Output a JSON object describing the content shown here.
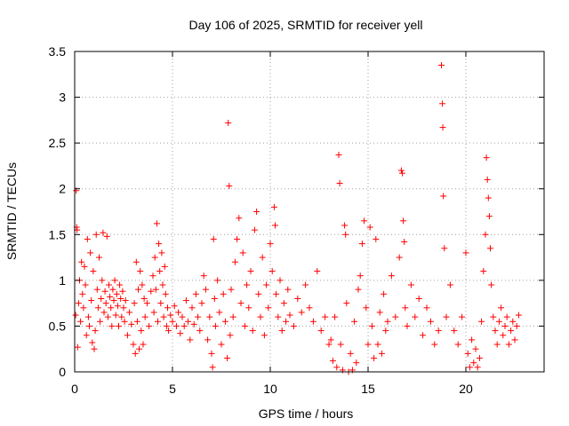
{
  "chart_data": {
    "type": "scatter",
    "title": "Day 106 of 2025, SRMTID for receiver yell",
    "xlabel": "GPS time / hours",
    "ylabel": "SRMTID / TECUs",
    "xlim": [
      0,
      24
    ],
    "ylim": [
      0,
      3.5
    ],
    "x_ticks": [
      0,
      5,
      10,
      15,
      20
    ],
    "x_tick_labels": [
      "0",
      "5",
      "10",
      "15",
      "20"
    ],
    "y_ticks": [
      0,
      0.5,
      1,
      1.5,
      2,
      2.5,
      3,
      3.5
    ],
    "y_tick_labels": [
      "0",
      "0.5",
      "1",
      "1.5",
      "2",
      "2.5",
      "3",
      "3.5"
    ],
    "grid": true,
    "marker": "plus",
    "color": "#ff0000",
    "series": [
      {
        "name": "SRMTID",
        "points": [
          [
            0.05,
            0.62
          ],
          [
            0.08,
            1.98
          ],
          [
            0.1,
            1.58
          ],
          [
            0.12,
            1.55
          ],
          [
            0.15,
            0.27
          ],
          [
            0.2,
            0.75
          ],
          [
            0.25,
            1.0
          ],
          [
            0.3,
            0.55
          ],
          [
            0.35,
            1.2
          ],
          [
            0.4,
            0.85
          ],
          [
            0.45,
            0.7
          ],
          [
            0.5,
            1.15
          ],
          [
            0.55,
            0.95
          ],
          [
            0.6,
            0.4
          ],
          [
            0.65,
            1.45
          ],
          [
            0.7,
            0.6
          ],
          [
            0.75,
            0.5
          ],
          [
            0.8,
            1.3
          ],
          [
            0.85,
            0.78
          ],
          [
            0.9,
            0.32
          ],
          [
            0.95,
            1.1
          ],
          [
            1.0,
            0.25
          ],
          [
            1.05,
            0.45
          ],
          [
            1.1,
            1.5
          ],
          [
            1.15,
            0.9
          ],
          [
            1.2,
            0.7
          ],
          [
            1.25,
            1.25
          ],
          [
            1.3,
            0.55
          ],
          [
            1.35,
            0.8
          ],
          [
            1.4,
            1.0
          ],
          [
            1.45,
            1.52
          ],
          [
            1.5,
            0.65
          ],
          [
            1.55,
            0.88
          ],
          [
            1.6,
            0.75
          ],
          [
            1.65,
            1.48
          ],
          [
            1.7,
            0.6
          ],
          [
            1.75,
            0.95
          ],
          [
            1.8,
            0.82
          ],
          [
            1.85,
            0.7
          ],
          [
            1.9,
            0.5
          ],
          [
            1.95,
            0.9
          ],
          [
            2.0,
            0.78
          ],
          [
            2.05,
            1.0
          ],
          [
            2.1,
            0.62
          ],
          [
            2.15,
            0.85
          ],
          [
            2.2,
            0.72
          ],
          [
            2.25,
            0.5
          ],
          [
            2.3,
            0.95
          ],
          [
            2.35,
            0.8
          ],
          [
            2.4,
            0.6
          ],
          [
            2.45,
            0.88
          ],
          [
            2.5,
            0.7
          ],
          [
            2.55,
            0.55
          ],
          [
            2.6,
            0.78
          ],
          [
            2.7,
            0.4
          ],
          [
            2.8,
            0.65
          ],
          [
            2.9,
            0.52
          ],
          [
            3.0,
            0.3
          ],
          [
            3.05,
            0.75
          ],
          [
            3.1,
            0.2
          ],
          [
            3.15,
            1.2
          ],
          [
            3.2,
            0.55
          ],
          [
            3.25,
            0.9
          ],
          [
            3.3,
            0.25
          ],
          [
            3.35,
            1.1
          ],
          [
            3.4,
            0.45
          ],
          [
            3.45,
            0.95
          ],
          [
            3.5,
            0.3
          ],
          [
            3.55,
            0.8
          ],
          [
            3.6,
            0.6
          ],
          [
            3.7,
            0.75
          ],
          [
            3.8,
            0.5
          ],
          [
            3.9,
            0.88
          ],
          [
            4.0,
            1.05
          ],
          [
            4.05,
            0.65
          ],
          [
            4.1,
            1.25
          ],
          [
            4.15,
            0.9
          ],
          [
            4.2,
            1.62
          ],
          [
            4.25,
            0.55
          ],
          [
            4.3,
            1.4
          ],
          [
            4.35,
            1.1
          ],
          [
            4.4,
            0.75
          ],
          [
            4.45,
            1.3
          ],
          [
            4.5,
            0.95
          ],
          [
            4.55,
            0.6
          ],
          [
            4.6,
            1.15
          ],
          [
            4.65,
            0.85
          ],
          [
            4.7,
            0.5
          ],
          [
            4.75,
            0.7
          ],
          [
            4.8,
            0.45
          ],
          [
            4.9,
            0.62
          ],
          [
            5.0,
            0.55
          ],
          [
            5.1,
            0.72
          ],
          [
            5.2,
            0.5
          ],
          [
            5.3,
            0.65
          ],
          [
            5.4,
            0.42
          ],
          [
            5.5,
            0.6
          ],
          [
            5.6,
            0.5
          ],
          [
            5.7,
            0.78
          ],
          [
            5.8,
            0.55
          ],
          [
            5.9,
            0.35
          ],
          [
            6.0,
            0.7
          ],
          [
            6.1,
            0.52
          ],
          [
            6.2,
            0.85
          ],
          [
            6.3,
            0.6
          ],
          [
            6.4,
            0.45
          ],
          [
            6.5,
            0.75
          ],
          [
            6.6,
            1.05
          ],
          [
            6.7,
            0.9
          ],
          [
            6.8,
            0.35
          ],
          [
            6.9,
            0.6
          ],
          [
            7.0,
            0.2
          ],
          [
            7.05,
            0.05
          ],
          [
            7.1,
            1.45
          ],
          [
            7.15,
            0.8
          ],
          [
            7.2,
            0.5
          ],
          [
            7.3,
            1.0
          ],
          [
            7.4,
            0.65
          ],
          [
            7.5,
            0.3
          ],
          [
            7.6,
            0.85
          ],
          [
            7.7,
            0.55
          ],
          [
            7.8,
            0.15
          ],
          [
            7.85,
            2.72
          ],
          [
            7.9,
            2.03
          ],
          [
            7.95,
            0.4
          ],
          [
            8.0,
            0.9
          ],
          [
            8.1,
            0.6
          ],
          [
            8.2,
            1.2
          ],
          [
            8.3,
            1.45
          ],
          [
            8.4,
            1.68
          ],
          [
            8.5,
            0.75
          ],
          [
            8.6,
            1.3
          ],
          [
            8.7,
            0.5
          ],
          [
            8.8,
            0.95
          ],
          [
            8.9,
            0.7
          ],
          [
            9.0,
            1.1
          ],
          [
            9.1,
            0.45
          ],
          [
            9.2,
            1.55
          ],
          [
            9.3,
            1.75
          ],
          [
            9.4,
            0.85
          ],
          [
            9.5,
            0.6
          ],
          [
            9.6,
            1.25
          ],
          [
            9.7,
            0.4
          ],
          [
            9.8,
            0.95
          ],
          [
            9.9,
            0.7
          ],
          [
            10.0,
            1.4
          ],
          [
            10.1,
            1.1
          ],
          [
            10.2,
            1.8
          ],
          [
            10.25,
            1.6
          ],
          [
            10.3,
            0.85
          ],
          [
            10.4,
            0.6
          ],
          [
            10.5,
            1.0
          ],
          [
            10.6,
            0.45
          ],
          [
            10.7,
            0.75
          ],
          [
            10.8,
            0.55
          ],
          [
            10.9,
            0.9
          ],
          [
            11.0,
            0.62
          ],
          [
            11.2,
            0.5
          ],
          [
            11.4,
            0.8
          ],
          [
            11.6,
            0.65
          ],
          [
            11.8,
            0.95
          ],
          [
            12.0,
            0.7
          ],
          [
            12.2,
            0.55
          ],
          [
            12.4,
            1.1
          ],
          [
            12.6,
            0.45
          ],
          [
            12.8,
            0.6
          ],
          [
            13.0,
            0.3
          ],
          [
            13.1,
            0.35
          ],
          [
            13.2,
            0.12
          ],
          [
            13.3,
            0.6
          ],
          [
            13.4,
            0.05
          ],
          [
            13.5,
            2.37
          ],
          [
            13.55,
            2.06
          ],
          [
            13.6,
            0.3
          ],
          [
            13.7,
            0.02
          ],
          [
            13.8,
            1.6
          ],
          [
            13.85,
            1.5
          ],
          [
            13.9,
            0.75
          ],
          [
            14.0,
            0.0
          ],
          [
            14.1,
            0.2
          ],
          [
            14.2,
            0.02
          ],
          [
            14.3,
            0.55
          ],
          [
            14.4,
            0.1
          ],
          [
            14.5,
            0.9
          ],
          [
            14.6,
            1.05
          ],
          [
            14.7,
            1.4
          ],
          [
            14.8,
            1.65
          ],
          [
            14.9,
            0.7
          ],
          [
            15.0,
            0.3
          ],
          [
            15.1,
            1.58
          ],
          [
            15.2,
            0.5
          ],
          [
            15.3,
            0.15
          ],
          [
            15.4,
            1.45
          ],
          [
            15.5,
            0.3
          ],
          [
            15.6,
            0.65
          ],
          [
            15.7,
            0.2
          ],
          [
            15.8,
            0.85
          ],
          [
            15.9,
            0.45
          ],
          [
            16.0,
            0.55
          ],
          [
            16.2,
            1.05
          ],
          [
            16.4,
            0.6
          ],
          [
            16.6,
            1.25
          ],
          [
            16.7,
            2.2
          ],
          [
            16.75,
            2.17
          ],
          [
            16.8,
            1.65
          ],
          [
            16.85,
            1.42
          ],
          [
            16.9,
            0.7
          ],
          [
            17.0,
            0.5
          ],
          [
            17.2,
            0.95
          ],
          [
            17.4,
            0.6
          ],
          [
            17.6,
            0.8
          ],
          [
            17.8,
            0.4
          ],
          [
            18.0,
            0.7
          ],
          [
            18.2,
            0.55
          ],
          [
            18.4,
            0.3
          ],
          [
            18.6,
            0.45
          ],
          [
            18.75,
            3.35
          ],
          [
            18.8,
            2.93
          ],
          [
            18.82,
            2.67
          ],
          [
            18.85,
            1.92
          ],
          [
            18.9,
            1.35
          ],
          [
            19.0,
            0.6
          ],
          [
            19.2,
            0.95
          ],
          [
            19.4,
            0.45
          ],
          [
            19.6,
            0.3
          ],
          [
            19.8,
            0.6
          ],
          [
            20.0,
            1.3
          ],
          [
            20.1,
            0.2
          ],
          [
            20.2,
            0.05
          ],
          [
            20.3,
            0.35
          ],
          [
            20.4,
            0.1
          ],
          [
            20.5,
            0.25
          ],
          [
            20.6,
            0.05
          ],
          [
            20.7,
            0.15
          ],
          [
            20.8,
            0.55
          ],
          [
            20.9,
            1.1
          ],
          [
            21.0,
            1.5
          ],
          [
            21.05,
            2.34
          ],
          [
            21.1,
            2.1
          ],
          [
            21.15,
            1.9
          ],
          [
            21.2,
            1.7
          ],
          [
            21.25,
            1.35
          ],
          [
            21.3,
            0.95
          ],
          [
            21.4,
            0.6
          ],
          [
            21.5,
            0.45
          ],
          [
            21.6,
            0.3
          ],
          [
            21.7,
            0.55
          ],
          [
            21.8,
            0.7
          ],
          [
            21.9,
            0.4
          ],
          [
            22.0,
            0.5
          ],
          [
            22.1,
            0.6
          ],
          [
            22.2,
            0.3
          ],
          [
            22.3,
            0.45
          ],
          [
            22.4,
            0.55
          ],
          [
            22.5,
            0.35
          ],
          [
            22.6,
            0.5
          ],
          [
            22.7,
            0.62
          ]
        ]
      }
    ]
  }
}
